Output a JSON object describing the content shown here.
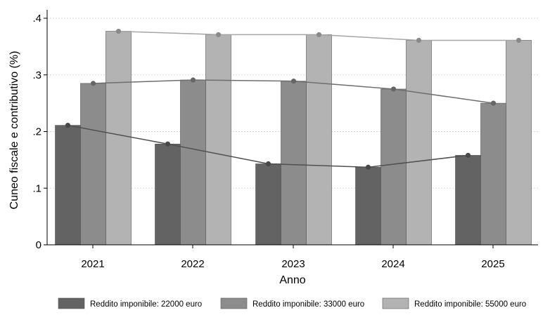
{
  "chart_data": {
    "type": "bar",
    "categories": [
      "2021",
      "2022",
      "2023",
      "2024",
      "2025"
    ],
    "series": [
      {
        "name": "Reddito imponibile: 22000 euro",
        "values": [
          0.211,
          0.178,
          0.143,
          0.137,
          0.158
        ],
        "color": "#636363"
      },
      {
        "name": "Reddito imponibile: 33000 euro",
        "values": [
          0.285,
          0.291,
          0.289,
          0.275,
          0.25
        ],
        "color": "#8c8c8c"
      },
      {
        "name": "Reddito imponibile: 55000 euro",
        "values": [
          0.377,
          0.371,
          0.371,
          0.361,
          0.361
        ],
        "color": "#b3b3b3"
      }
    ],
    "overlay_lines": true,
    "xlabel": "Anno",
    "ylabel": "Cuneo fiscale e contributivo (%)",
    "ylim": [
      0,
      0.4
    ],
    "yticks": [
      0,
      0.1,
      0.2,
      0.3,
      0.4
    ],
    "ytick_labels": [
      "0",
      ".1",
      ".2",
      ".3",
      ".4"
    ],
    "grid": true,
    "legend_position": "bottom"
  }
}
